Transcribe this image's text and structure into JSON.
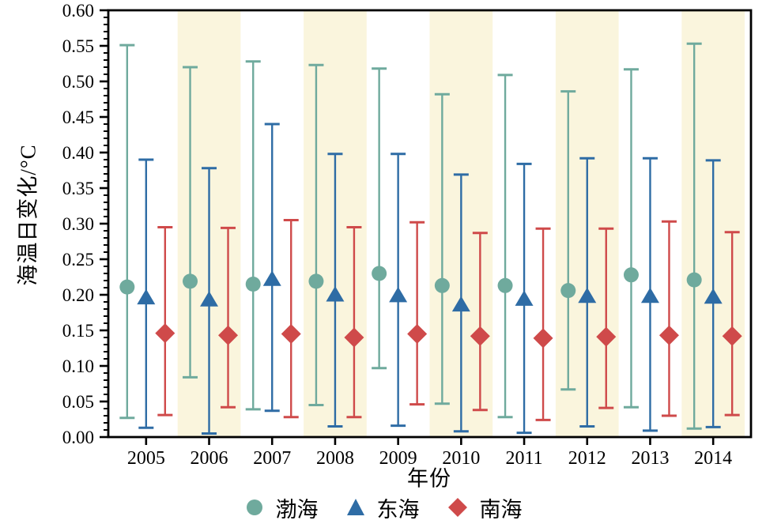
{
  "chart_data": {
    "type": "scatter",
    "subtype": "errorbar",
    "title": "",
    "xlabel": "年份",
    "ylabel": "海温日变化/°C",
    "x": [
      2005,
      2006,
      2007,
      2008,
      2009,
      2010,
      2011,
      2012,
      2013,
      2014
    ],
    "xlim": [
      2004.4,
      2014.6
    ],
    "ylim": [
      0.0,
      0.6
    ],
    "ytick_step": 0.05,
    "yminor_step": 0.01,
    "ytick_decimals": 2,
    "grid": false,
    "legend_position": "bottom",
    "axis_color": "#000000",
    "band_highlight": {
      "years": [
        2006,
        2008,
        2010,
        2012,
        2014
      ],
      "color": "#faf5dd"
    },
    "series": [
      {
        "key": "bohai",
        "name": "渤海",
        "marker": "circle",
        "color": "#6faa9d",
        "values": [
          0.211,
          0.219,
          0.215,
          0.219,
          0.23,
          0.213,
          0.213,
          0.206,
          0.228,
          0.221
        ],
        "err_low": [
          0.027,
          0.084,
          0.039,
          0.045,
          0.097,
          0.047,
          0.028,
          0.067,
          0.042,
          0.012
        ],
        "err_high": [
          0.551,
          0.52,
          0.528,
          0.523,
          0.518,
          0.482,
          0.509,
          0.486,
          0.517,
          0.553
        ]
      },
      {
        "key": "donghai",
        "name": "东海",
        "marker": "triangle",
        "color": "#2e6ca5",
        "values": [
          0.196,
          0.193,
          0.222,
          0.2,
          0.199,
          0.186,
          0.194,
          0.198,
          0.198,
          0.197
        ],
        "err_low": [
          0.013,
          0.005,
          0.037,
          0.015,
          0.016,
          0.008,
          0.006,
          0.015,
          0.009,
          0.014
        ],
        "err_high": [
          0.39,
          0.378,
          0.44,
          0.398,
          0.398,
          0.369,
          0.384,
          0.392,
          0.392,
          0.389
        ]
      },
      {
        "key": "nanhai",
        "name": "南海",
        "marker": "diamond",
        "color": "#cf4a4a",
        "values": [
          0.146,
          0.143,
          0.145,
          0.14,
          0.145,
          0.142,
          0.139,
          0.141,
          0.143,
          0.142
        ],
        "err_low": [
          0.031,
          0.042,
          0.028,
          0.028,
          0.046,
          0.038,
          0.024,
          0.041,
          0.03,
          0.031
        ],
        "err_high": [
          0.295,
          0.294,
          0.305,
          0.295,
          0.302,
          0.287,
          0.293,
          0.293,
          0.303,
          0.288
        ]
      }
    ]
  }
}
